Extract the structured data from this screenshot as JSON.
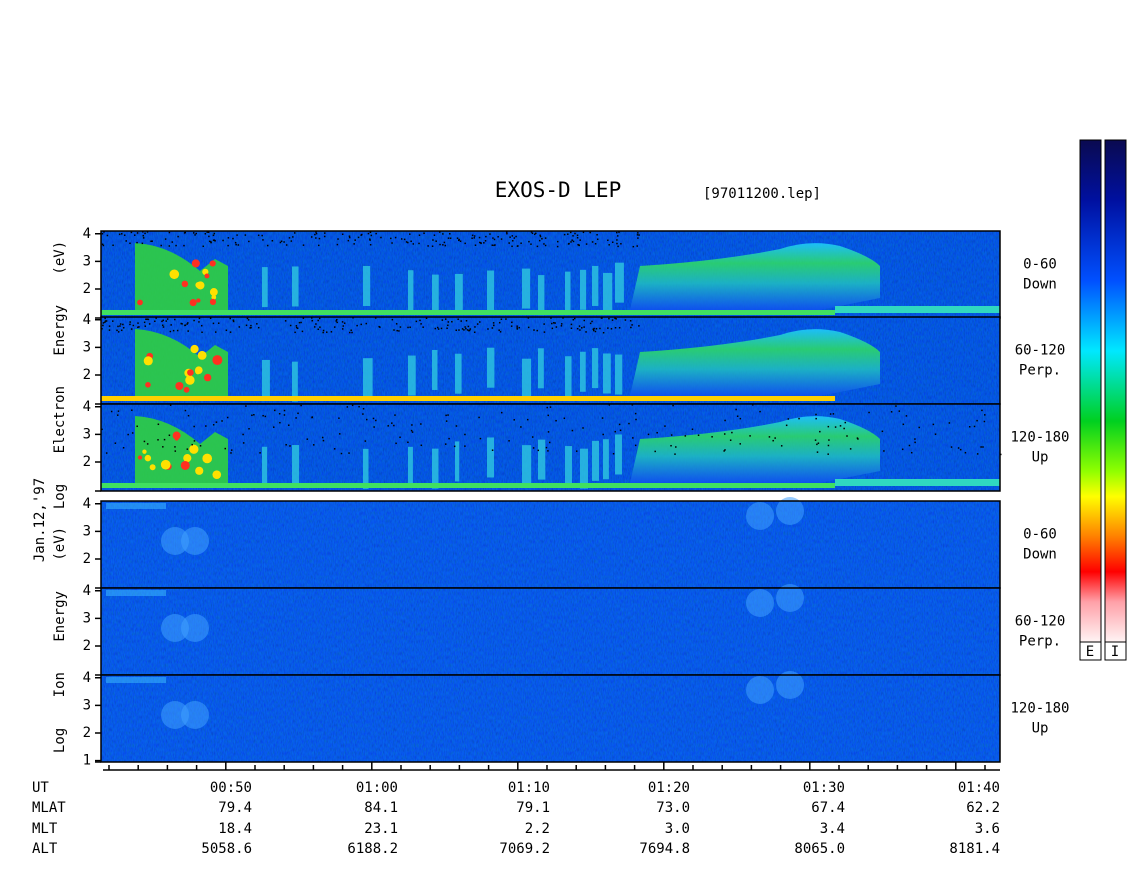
{
  "chart_data": {
    "type": "spectrogram",
    "title": "EXOS-D LEP",
    "subtitle": "[97011200.lep]",
    "date_label": "Jan.12,'97",
    "groups": [
      {
        "ylabel": "Log Electron Energy (eV)",
        "panels": [
          {
            "labels": [
              "0-60",
              "Down"
            ],
            "ylim": [
              0.95,
              4.1
            ],
            "yticks": [
              2,
              3,
              4
            ]
          },
          {
            "labels": [
              "60-120",
              "Perp."
            ],
            "ylim": [
              0.95,
              4.1
            ],
            "yticks": [
              2,
              3,
              4
            ]
          },
          {
            "labels": [
              "120-180",
              "Up"
            ],
            "ylim": [
              0.95,
              4.1
            ],
            "yticks": [
              2,
              3,
              4
            ]
          }
        ]
      },
      {
        "ylabel": "Log Ion Energy (eV)",
        "panels": [
          {
            "labels": [
              "0-60",
              "Down"
            ],
            "ylim": [
              0.95,
              4.1
            ],
            "yticks": [
              2,
              3,
              4
            ]
          },
          {
            "labels": [
              "60-120",
              "Perp."
            ],
            "ylim": [
              0.95,
              4.1
            ],
            "yticks": [
              2,
              3,
              4
            ]
          },
          {
            "labels": [
              "120-180",
              "Up"
            ],
            "ylim": [
              0.95,
              4.1
            ],
            "yticks": [
              1,
              2,
              3,
              4
            ]
          }
        ]
      }
    ],
    "colorbar_labels": [
      "E",
      "I"
    ],
    "x_table": {
      "rows": [
        {
          "label": "UT",
          "values": [
            "00:50",
            "01:00",
            "01:10",
            "01:20",
            "01:30",
            "01:40"
          ]
        },
        {
          "label": "MLAT",
          "values": [
            "79.4",
            "84.1",
            "79.1",
            "73.0",
            "67.4",
            "62.2"
          ]
        },
        {
          "label": "MLT",
          "values": [
            "18.4",
            "23.1",
            "2.2",
            "3.0",
            "3.4",
            "3.6"
          ]
        },
        {
          "label": "ALT",
          "values": [
            "5058.6",
            "6188.2",
            "7069.2",
            "7694.8",
            "8065.0",
            "8181.4"
          ]
        }
      ]
    }
  }
}
